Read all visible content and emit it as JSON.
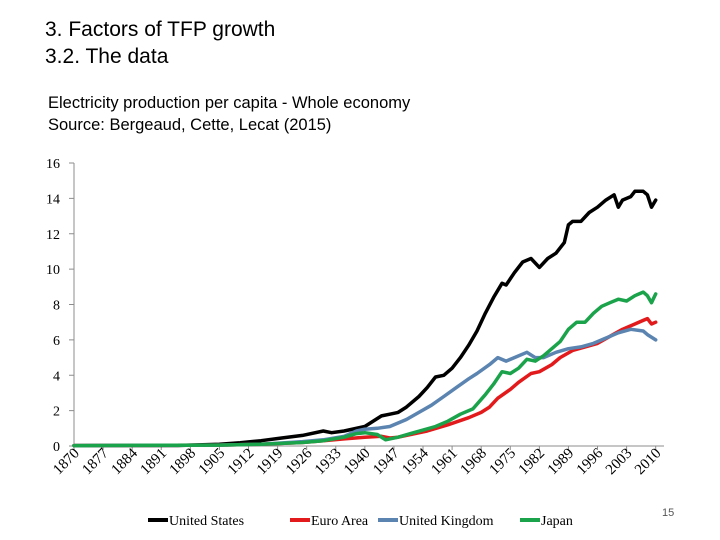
{
  "slide": {
    "heading_line1": "3.   Factors of TFP growth",
    "heading_line2": "3.2. The data",
    "page_number": "15"
  },
  "chart_data": {
    "type": "line",
    "title": "Electricity production per capita - Whole economy",
    "subtitle": "Source: Bergeaud, Cette, Lecat (2015)",
    "xlabel": "",
    "ylabel": "",
    "xlim": [
      1870,
      2012
    ],
    "ylim": [
      0,
      16
    ],
    "yticks": [
      0,
      2,
      4,
      6,
      8,
      10,
      12,
      14,
      16
    ],
    "xticks": [
      "1870",
      "1877",
      "1884",
      "1891",
      "1898",
      "1905",
      "1912",
      "1919",
      "1926",
      "1933",
      "1940",
      "1947",
      "1954",
      "1961",
      "1968",
      "1975",
      "1982",
      "1989",
      "1996",
      "2003",
      "2010"
    ],
    "grid": false,
    "legend_position": "bottom",
    "series": [
      {
        "name": "United States",
        "color": "#000000",
        "points": [
          [
            1870,
            0.02
          ],
          [
            1895,
            0.03
          ],
          [
            1905,
            0.1
          ],
          [
            1910,
            0.18
          ],
          [
            1915,
            0.3
          ],
          [
            1920,
            0.45
          ],
          [
            1925,
            0.6
          ],
          [
            1930,
            0.85
          ],
          [
            1932,
            0.75
          ],
          [
            1935,
            0.85
          ],
          [
            1940,
            1.1
          ],
          [
            1944,
            1.7
          ],
          [
            1946,
            1.8
          ],
          [
            1948,
            1.9
          ],
          [
            1950,
            2.2
          ],
          [
            1953,
            2.8
          ],
          [
            1955,
            3.3
          ],
          [
            1957,
            3.9
          ],
          [
            1959,
            4.0
          ],
          [
            1961,
            4.4
          ],
          [
            1963,
            5.0
          ],
          [
            1965,
            5.7
          ],
          [
            1967,
            6.5
          ],
          [
            1969,
            7.5
          ],
          [
            1971,
            8.4
          ],
          [
            1973,
            9.2
          ],
          [
            1974,
            9.1
          ],
          [
            1976,
            9.8
          ],
          [
            1978,
            10.4
          ],
          [
            1980,
            10.6
          ],
          [
            1982,
            10.1
          ],
          [
            1984,
            10.6
          ],
          [
            1986,
            10.9
          ],
          [
            1988,
            11.5
          ],
          [
            1989,
            12.5
          ],
          [
            1990,
            12.7
          ],
          [
            1992,
            12.7
          ],
          [
            1994,
            13.2
          ],
          [
            1996,
            13.5
          ],
          [
            1998,
            13.9
          ],
          [
            2000,
            14.2
          ],
          [
            2001,
            13.5
          ],
          [
            2002,
            13.9
          ],
          [
            2004,
            14.1
          ],
          [
            2005,
            14.4
          ],
          [
            2007,
            14.4
          ],
          [
            2008,
            14.2
          ],
          [
            2009,
            13.5
          ],
          [
            2010,
            13.9
          ]
        ]
      },
      {
        "name": "Euro Area",
        "color": "#e31a1c",
        "points": [
          [
            1870,
            0.02
          ],
          [
            1905,
            0.05
          ],
          [
            1915,
            0.1
          ],
          [
            1925,
            0.2
          ],
          [
            1930,
            0.3
          ],
          [
            1935,
            0.4
          ],
          [
            1940,
            0.5
          ],
          [
            1944,
            0.55
          ],
          [
            1946,
            0.45
          ],
          [
            1948,
            0.5
          ],
          [
            1950,
            0.6
          ],
          [
            1955,
            0.85
          ],
          [
            1960,
            1.2
          ],
          [
            1965,
            1.6
          ],
          [
            1968,
            1.9
          ],
          [
            1970,
            2.2
          ],
          [
            1972,
            2.7
          ],
          [
            1975,
            3.2
          ],
          [
            1977,
            3.6
          ],
          [
            1980,
            4.1
          ],
          [
            1982,
            4.2
          ],
          [
            1985,
            4.6
          ],
          [
            1987,
            5.0
          ],
          [
            1990,
            5.4
          ],
          [
            1993,
            5.6
          ],
          [
            1996,
            5.8
          ],
          [
            1999,
            6.2
          ],
          [
            2002,
            6.6
          ],
          [
            2005,
            6.9
          ],
          [
            2007,
            7.1
          ],
          [
            2008,
            7.2
          ],
          [
            2009,
            6.9
          ],
          [
            2010,
            7.0
          ]
        ]
      },
      {
        "name": "United Kingdom",
        "color": "#5b84b1",
        "points": [
          [
            1870,
            0.02
          ],
          [
            1905,
            0.05
          ],
          [
            1915,
            0.1
          ],
          [
            1925,
            0.25
          ],
          [
            1930,
            0.35
          ],
          [
            1935,
            0.55
          ],
          [
            1938,
            0.85
          ],
          [
            1940,
            0.95
          ],
          [
            1943,
            1.0
          ],
          [
            1946,
            1.1
          ],
          [
            1950,
            1.5
          ],
          [
            1953,
            1.9
          ],
          [
            1956,
            2.3
          ],
          [
            1959,
            2.8
          ],
          [
            1962,
            3.3
          ],
          [
            1965,
            3.8
          ],
          [
            1967,
            4.1
          ],
          [
            1970,
            4.6
          ],
          [
            1972,
            5.0
          ],
          [
            1974,
            4.8
          ],
          [
            1976,
            5.0
          ],
          [
            1979,
            5.3
          ],
          [
            1981,
            5.0
          ],
          [
            1983,
            5.0
          ],
          [
            1986,
            5.3
          ],
          [
            1989,
            5.5
          ],
          [
            1992,
            5.6
          ],
          [
            1995,
            5.8
          ],
          [
            1998,
            6.1
          ],
          [
            2001,
            6.4
          ],
          [
            2004,
            6.6
          ],
          [
            2007,
            6.5
          ],
          [
            2008,
            6.3
          ],
          [
            2010,
            6.0
          ]
        ]
      },
      {
        "name": "Japan",
        "color": "#1aa34a",
        "points": [
          [
            1870,
            0.02
          ],
          [
            1905,
            0.05
          ],
          [
            1915,
            0.1
          ],
          [
            1925,
            0.2
          ],
          [
            1930,
            0.3
          ],
          [
            1935,
            0.5
          ],
          [
            1938,
            0.7
          ],
          [
            1940,
            0.75
          ],
          [
            1943,
            0.65
          ],
          [
            1945,
            0.35
          ],
          [
            1948,
            0.5
          ],
          [
            1951,
            0.7
          ],
          [
            1954,
            0.9
          ],
          [
            1957,
            1.1
          ],
          [
            1960,
            1.4
          ],
          [
            1963,
            1.8
          ],
          [
            1966,
            2.1
          ],
          [
            1969,
            2.9
          ],
          [
            1971,
            3.5
          ],
          [
            1973,
            4.2
          ],
          [
            1975,
            4.1
          ],
          [
            1977,
            4.4
          ],
          [
            1979,
            4.9
          ],
          [
            1981,
            4.8
          ],
          [
            1983,
            5.1
          ],
          [
            1985,
            5.5
          ],
          [
            1987,
            5.9
          ],
          [
            1989,
            6.6
          ],
          [
            1991,
            7.0
          ],
          [
            1993,
            7.0
          ],
          [
            1995,
            7.5
          ],
          [
            1997,
            7.9
          ],
          [
            1999,
            8.1
          ],
          [
            2001,
            8.3
          ],
          [
            2003,
            8.2
          ],
          [
            2005,
            8.5
          ],
          [
            2007,
            8.7
          ],
          [
            2008,
            8.5
          ],
          [
            2009,
            8.1
          ],
          [
            2010,
            8.6
          ]
        ]
      }
    ]
  }
}
